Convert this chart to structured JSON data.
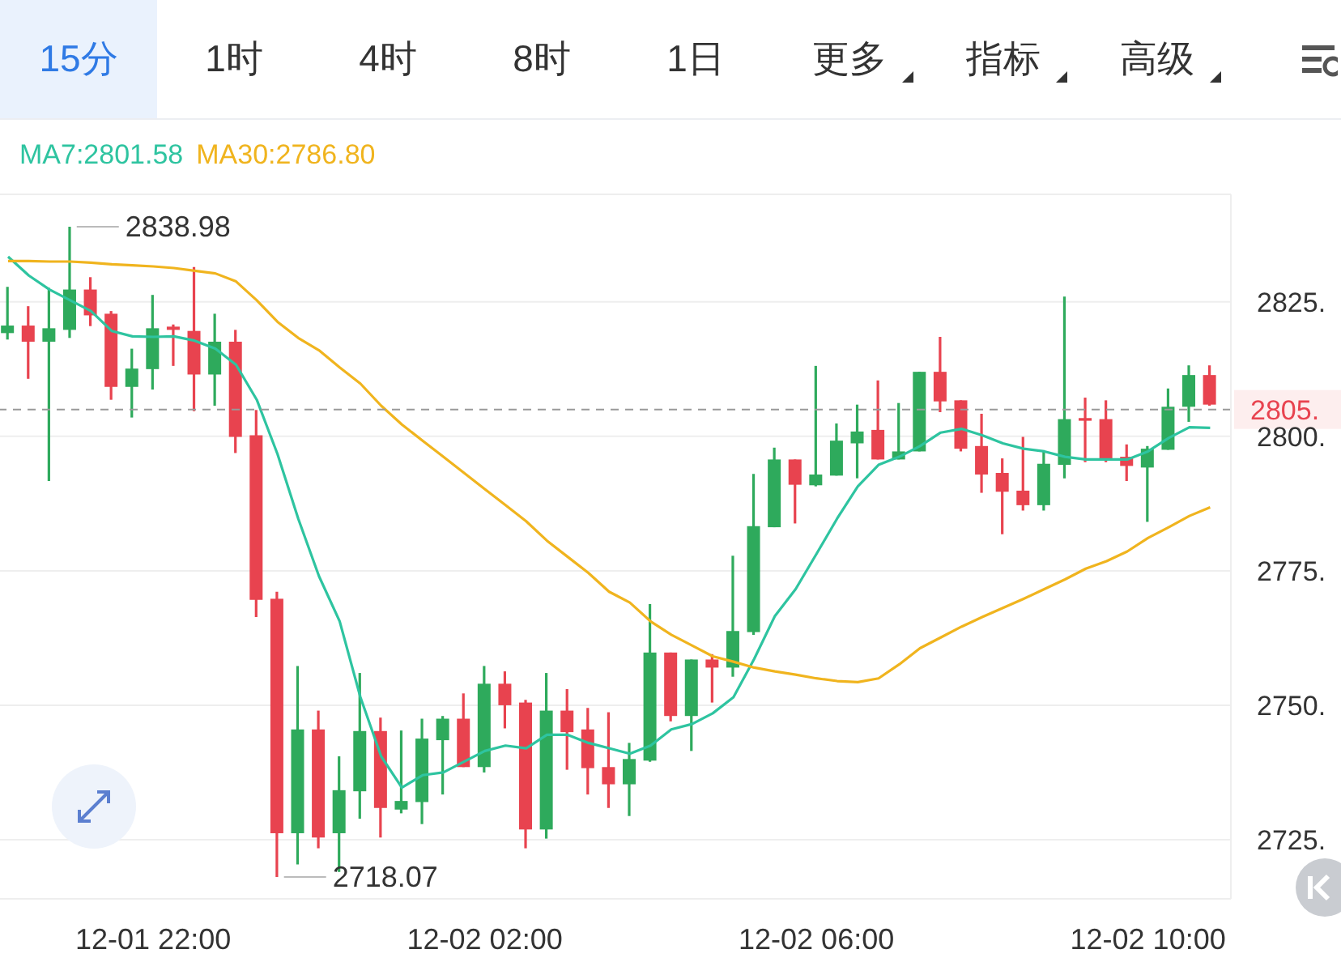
{
  "chart_data": {
    "type": "candlestick",
    "categories": [
      null,
      null,
      null,
      null,
      null,
      null,
      null,
      "12-01 22:00",
      null,
      null,
      null,
      null,
      null,
      null,
      null,
      null,
      null,
      null,
      null,
      null,
      null,
      null,
      null,
      "12-02 02:00",
      null,
      null,
      null,
      null,
      null,
      null,
      null,
      null,
      null,
      null,
      null,
      null,
      null,
      null,
      null,
      "12-02 06:00",
      null,
      null,
      null,
      null,
      null,
      null,
      null,
      null,
      null,
      null,
      null,
      null,
      null,
      null,
      null,
      "12-02 10:00",
      null,
      null,
      null
    ],
    "ohlc": [
      [
        2819.2,
        2827.8,
        2818.0,
        2820.6
      ],
      [
        2820.6,
        2824.2,
        2810.7,
        2817.6
      ],
      [
        2817.6,
        2827.6,
        2791.7,
        2820.1
      ],
      [
        2819.8,
        2838.98,
        2818.3,
        2827.3
      ],
      [
        2827.3,
        2829.6,
        2820.5,
        2822.5
      ],
      [
        2822.8,
        2823.3,
        2806.8,
        2809.2
      ],
      [
        2809.2,
        2816.3,
        2803.5,
        2812.6
      ],
      [
        2812.5,
        2826.3,
        2808.7,
        2820.1
      ],
      [
        2820.4,
        2820.8,
        2813.1,
        2819.8
      ],
      [
        2819.6,
        2831.5,
        2804.7,
        2811.5
      ],
      [
        2811.5,
        2822.8,
        2805.7,
        2817.6
      ],
      [
        2817.6,
        2819.8,
        2796.9,
        2799.9
      ],
      [
        2800.2,
        2804.9,
        2766.4,
        2769.6
      ],
      [
        2769.8,
        2771.1,
        2718.07,
        2726.2
      ],
      [
        2726.2,
        2757.3,
        2720.4,
        2745.5
      ],
      [
        2745.5,
        2749.0,
        2723.4,
        2725.4
      ],
      [
        2726.2,
        2740.5,
        2719.0,
        2734.2
      ],
      [
        2734.0,
        2756.0,
        2728.9,
        2745.2
      ],
      [
        2745.2,
        2747.7,
        2725.4,
        2730.9
      ],
      [
        2730.6,
        2745.3,
        2729.9,
        2732.2
      ],
      [
        2732.0,
        2747.5,
        2727.9,
        2743.8
      ],
      [
        2743.5,
        2748.0,
        2733.4,
        2747.5
      ],
      [
        2747.5,
        2752.2,
        2738.5,
        2738.5
      ],
      [
        2738.5,
        2757.3,
        2737.5,
        2754.0
      ],
      [
        2754.0,
        2756.3,
        2745.7,
        2750.0
      ],
      [
        2750.5,
        2751.0,
        2723.4,
        2726.9
      ],
      [
        2726.9,
        2756.0,
        2725.2,
        2749.0
      ],
      [
        2749.0,
        2753.0,
        2738.0,
        2745.0
      ],
      [
        2745.5,
        2749.5,
        2733.4,
        2738.3
      ],
      [
        2738.5,
        2748.7,
        2730.9,
        2735.3
      ],
      [
        2735.3,
        2743.0,
        2729.4,
        2740.0
      ],
      [
        2739.7,
        2768.8,
        2739.5,
        2759.8
      ],
      [
        2759.8,
        2759.8,
        2747.0,
        2748.0
      ],
      [
        2748.0,
        2758.5,
        2741.5,
        2758.5
      ],
      [
        2758.5,
        2759.5,
        2750.5,
        2757.0
      ],
      [
        2757.0,
        2777.8,
        2755.3,
        2763.8
      ],
      [
        2763.6,
        2793.0,
        2763.1,
        2783.3
      ],
      [
        2783.1,
        2797.9,
        2783.1,
        2795.7
      ],
      [
        2795.7,
        2795.7,
        2783.8,
        2791.0
      ],
      [
        2790.9,
        2813.1,
        2790.7,
        2792.9
      ],
      [
        2792.7,
        2802.4,
        2792.7,
        2799.2
      ],
      [
        2798.7,
        2805.9,
        2792.2,
        2800.9
      ],
      [
        2801.2,
        2810.4,
        2795.7,
        2795.7
      ],
      [
        2795.7,
        2806.2,
        2795.7,
        2797.2
      ],
      [
        2797.2,
        2812.0,
        2797.2,
        2812.0
      ],
      [
        2812.0,
        2818.5,
        2804.5,
        2806.5
      ],
      [
        2806.7,
        2806.7,
        2797.2,
        2797.7
      ],
      [
        2798.2,
        2804.2,
        2789.5,
        2792.9
      ],
      [
        2793.2,
        2795.9,
        2781.8,
        2789.7
      ],
      [
        2789.9,
        2799.9,
        2786.2,
        2787.2
      ],
      [
        2787.2,
        2797.2,
        2786.2,
        2794.9
      ],
      [
        2794.7,
        2826.0,
        2792.2,
        2803.2
      ],
      [
        2803.4,
        2807.2,
        2795.2,
        2802.9
      ],
      [
        2803.2,
        2806.7,
        2795.2,
        2795.9
      ],
      [
        2796.2,
        2798.5,
        2791.7,
        2794.5
      ],
      [
        2794.2,
        2798.2,
        2784.1,
        2797.7
      ],
      [
        2797.5,
        2808.9,
        2797.5,
        2805.5
      ],
      [
        2805.5,
        2813.2,
        2802.7,
        2811.4
      ],
      [
        2811.4,
        2813.2,
        2805.7,
        2805.9
      ]
    ],
    "colors": [
      "#2eaa5c",
      "#e8434f",
      "#2eaa5c",
      "#2eaa5c",
      "#e8434f",
      "#e8434f",
      "#2eaa5c",
      "#2eaa5c",
      "#e8434f",
      "#e8434f",
      "#2eaa5c",
      "#e8434f",
      "#e8434f",
      "#e8434f",
      "#2eaa5c",
      "#e8434f",
      "#2eaa5c",
      "#2eaa5c",
      "#e8434f",
      "#2eaa5c",
      "#2eaa5c",
      "#2eaa5c",
      "#e8434f",
      "#2eaa5c",
      "#e8434f",
      "#e8434f",
      "#2eaa5c",
      "#e8434f",
      "#e8434f",
      "#e8434f",
      "#2eaa5c",
      "#2eaa5c",
      "#e8434f",
      "#2eaa5c",
      "#e8434f",
      "#2eaa5c",
      "#2eaa5c",
      "#2eaa5c",
      "#e8434f",
      "#2eaa5c",
      "#2eaa5c",
      "#2eaa5c",
      "#e8434f",
      "#2eaa5c",
      "#2eaa5c",
      "#e8434f",
      "#e8434f",
      "#e8434f",
      "#e8434f",
      "#e8434f",
      "#2eaa5c",
      "#2eaa5c",
      "#e8434f",
      "#e8434f",
      "#e8434f",
      "#2eaa5c",
      "#2eaa5c",
      "#2eaa5c",
      "#e8434f"
    ],
    "series": [
      {
        "name": "MA7:2801.58",
        "type": "line",
        "color": "#2ec4a0",
        "values": [
          2833.4,
          2829.9,
          2827.3,
          2825.3,
          2823.3,
          2819.6,
          2818.6,
          2818.5,
          2818.6,
          2817.8,
          2816.3,
          2813.3,
          2806.8,
          2796.7,
          2784.7,
          2774.0,
          2765.6,
          2751.5,
          2740.5,
          2734.7,
          2737.0,
          2737.5,
          2739.5,
          2741.5,
          2742.5,
          2742.0,
          2744.5,
          2744.5,
          2743.0,
          2742.0,
          2741.0,
          2742.5,
          2745.5,
          2746.5,
          2748.5,
          2751.5,
          2758.6,
          2766.6,
          2771.6,
          2778.1,
          2784.7,
          2790.7,
          2794.7,
          2796.2,
          2798.2,
          2800.7,
          2801.4,
          2800.2,
          2798.7,
          2797.7,
          2797.2,
          2796.2,
          2795.7,
          2795.7,
          2795.7,
          2797.2,
          2799.7,
          2801.7,
          2801.58
        ]
      },
      {
        "name": "MA30:2786.80",
        "type": "line",
        "color": "#f0b41e",
        "values": [
          2832.6,
          2832.6,
          2832.5,
          2832.5,
          2832.3,
          2832.0,
          2831.8,
          2831.6,
          2831.3,
          2830.8,
          2830.3,
          2828.8,
          2825.3,
          2821.3,
          2818.3,
          2816.0,
          2812.8,
          2809.8,
          2805.7,
          2802.2,
          2799.2,
          2796.2,
          2793.2,
          2790.2,
          2787.2,
          2784.2,
          2780.6,
          2777.6,
          2774.6,
          2771.1,
          2769.1,
          2765.6,
          2763.1,
          2761.1,
          2759.1,
          2758.1,
          2757.0,
          2756.3,
          2755.7,
          2755.0,
          2754.5,
          2754.3,
          2755.0,
          2757.6,
          2760.6,
          2762.6,
          2764.6,
          2766.4,
          2768.1,
          2769.8,
          2771.6,
          2773.4,
          2775.4,
          2776.8,
          2778.6,
          2781.1,
          2783.1,
          2785.2,
          2786.8
        ]
      }
    ],
    "ylim": [
      2714,
      2845
    ],
    "yticks": [
      {
        "value": 2725,
        "label": "2725."
      },
      {
        "value": 2750,
        "label": "2750."
      },
      {
        "value": 2775,
        "label": "2775."
      },
      {
        "value": 2800,
        "label": "2800."
      },
      {
        "value": 2825,
        "label": "2825."
      }
    ],
    "ref_lines": [
      {
        "axis": "y",
        "value": 2805,
        "label": "2805.",
        "color": "#999999",
        "line_style": "dashed"
      }
    ],
    "grid": "y",
    "legend": "top left",
    "marker": "none",
    "line_style": "solid",
    "annotations": [
      "15分",
      "1时",
      "4时",
      "8时",
      "1日",
      "更多",
      "指标",
      "高级",
      "2838.98",
      "2718.07"
    ]
  }
}
